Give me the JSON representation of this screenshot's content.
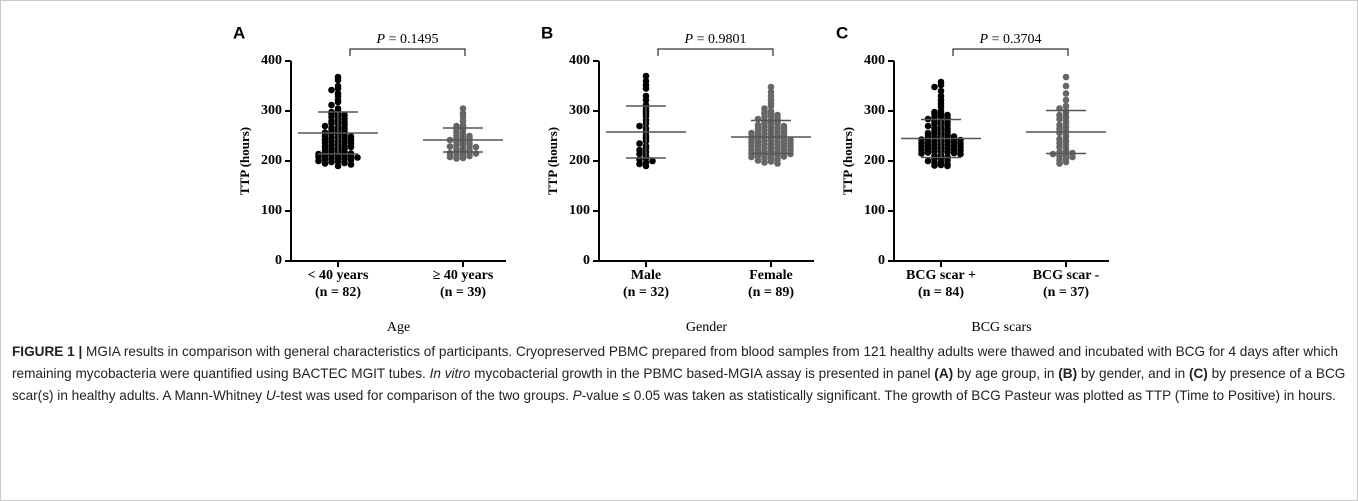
{
  "chart_data": [
    {
      "type": "strip",
      "panel_label": "A",
      "annotation": {
        "italic": "P",
        "text": " = 0.1495"
      },
      "ylabel": "TTP (hours)",
      "xlabel": "Age",
      "categories": [
        "< 40 years",
        "≥ 40 years"
      ],
      "category_counts": [
        "(n = 82)",
        "(n = 39)"
      ],
      "ylim": [
        0,
        400
      ],
      "yticks": [
        0,
        100,
        200,
        300,
        400
      ],
      "series": [
        {
          "color": "#000000",
          "mean": 256,
          "sd": 42,
          "values": [
            368,
            362,
            350,
            345,
            342,
            335,
            330,
            322,
            318,
            312,
            305,
            300,
            298,
            296,
            295,
            292,
            290,
            288,
            285,
            282,
            280,
            278,
            276,
            275,
            272,
            270,
            268,
            266,
            265,
            262,
            260,
            258,
            257,
            255,
            254,
            252,
            250,
            249,
            248,
            246,
            245,
            243,
            242,
            240,
            239,
            238,
            236,
            235,
            233,
            232,
            230,
            229,
            228,
            226,
            225,
            224,
            222,
            220,
            219,
            218,
            216,
            215,
            214,
            213,
            212,
            211,
            210,
            209,
            208,
            207,
            206,
            205,
            204,
            203,
            202,
            200,
            199,
            198,
            196,
            195,
            193,
            190
          ]
        },
        {
          "color": "#666666",
          "mean": 242,
          "sd": 24,
          "values": [
            305,
            295,
            288,
            280,
            272,
            270,
            268,
            265,
            262,
            258,
            255,
            252,
            250,
            248,
            246,
            244,
            242,
            240,
            238,
            236,
            234,
            232,
            230,
            229,
            228,
            226,
            224,
            222,
            220,
            219,
            218,
            216,
            215,
            213,
            212,
            210,
            208,
            206,
            205
          ]
        }
      ]
    },
    {
      "type": "strip",
      "panel_label": "B",
      "annotation": {
        "italic": "P",
        "text": " = 0.9801"
      },
      "ylabel": "TTP (hours)",
      "xlabel": "Gender",
      "categories": [
        "Male",
        "Female"
      ],
      "category_counts": [
        "(n = 32)",
        "(n = 89)"
      ],
      "ylim": [
        0,
        400
      ],
      "yticks": [
        0,
        100,
        200,
        300,
        400
      ],
      "series": [
        {
          "color": "#000000",
          "mean": 258,
          "sd": 52,
          "values": [
            370,
            360,
            352,
            345,
            330,
            322,
            312,
            305,
            300,
            295,
            290,
            282,
            275,
            270,
            265,
            258,
            250,
            245,
            240,
            235,
            230,
            226,
            222,
            218,
            214,
            210,
            206,
            203,
            200,
            197,
            194,
            190
          ]
        },
        {
          "color": "#666666",
          "mean": 248,
          "sd": 33,
          "values": [
            348,
            338,
            330,
            322,
            315,
            310,
            305,
            300,
            298,
            296,
            294,
            292,
            290,
            288,
            286,
            284,
            282,
            280,
            278,
            276,
            275,
            274,
            272,
            270,
            269,
            268,
            266,
            265,
            264,
            262,
            261,
            260,
            258,
            257,
            256,
            255,
            254,
            252,
            251,
            250,
            249,
            248,
            247,
            246,
            245,
            244,
            243,
            242,
            241,
            240,
            239,
            238,
            237,
            236,
            235,
            234,
            233,
            232,
            231,
            230,
            229,
            228,
            227,
            226,
            225,
            224,
            223,
            222,
            221,
            220,
            219,
            218,
            217,
            216,
            215,
            214,
            213,
            212,
            211,
            210,
            209,
            208,
            206,
            205,
            203,
            201,
            199,
            197,
            195
          ]
        }
      ]
    },
    {
      "type": "strip",
      "panel_label": "C",
      "annotation": {
        "italic": "P",
        "text": " = 0.3704"
      },
      "ylabel": "TTP (hours)",
      "xlabel": "BCG scars",
      "categories": [
        "BCG scar +",
        "BCG scar -"
      ],
      "category_counts": [
        "(n = 84)",
        "(n = 37)"
      ],
      "ylim": [
        0,
        400
      ],
      "yticks": [
        0,
        100,
        200,
        300,
        400
      ],
      "series": [
        {
          "color": "#000000",
          "mean": 245,
          "sd": 38,
          "values": [
            358,
            352,
            348,
            340,
            330,
            322,
            315,
            308,
            300,
            298,
            296,
            294,
            292,
            290,
            288,
            286,
            284,
            282,
            280,
            278,
            276,
            274,
            272,
            270,
            268,
            266,
            264,
            262,
            260,
            258,
            256,
            255,
            254,
            252,
            250,
            249,
            248,
            247,
            246,
            245,
            244,
            243,
            242,
            241,
            240,
            239,
            238,
            237,
            236,
            235,
            234,
            233,
            232,
            231,
            230,
            229,
            228,
            227,
            226,
            225,
            224,
            223,
            222,
            221,
            220,
            219,
            218,
            217,
            216,
            215,
            214,
            212,
            210,
            208,
            206,
            204,
            202,
            200,
            198,
            196,
            194,
            192,
            191,
            190
          ]
        },
        {
          "color": "#666666",
          "mean": 258,
          "sd": 43,
          "values": [
            368,
            350,
            335,
            322,
            310,
            305,
            300,
            296,
            292,
            288,
            284,
            280,
            276,
            272,
            268,
            264,
            260,
            256,
            252,
            248,
            244,
            240,
            236,
            232,
            228,
            224,
            220,
            218,
            216,
            214,
            212,
            210,
            208,
            205,
            202,
            198,
            195
          ]
        }
      ]
    }
  ],
  "caption": [
    {
      "style": "bold",
      "text": "FIGURE 1 |"
    },
    {
      "style": "normal",
      "text": " MGIA results in comparison with general characteristics of participants. Cryopreserved PBMC prepared from blood samples from 121 healthy adults were thawed and incubated with BCG for 4 days after which remaining mycobacteria were quantified using BACTEC MGIT tubes. "
    },
    {
      "style": "italic",
      "text": "In vitro"
    },
    {
      "style": "normal",
      "text": " mycobacterial growth in the PBMC based-MGIA assay is presented in panel "
    },
    {
      "style": "bold",
      "text": "(A)"
    },
    {
      "style": "normal",
      "text": " by age group, in "
    },
    {
      "style": "bold",
      "text": "(B)"
    },
    {
      "style": "normal",
      "text": " by gender, and in "
    },
    {
      "style": "bold",
      "text": "(C)"
    },
    {
      "style": "normal",
      "text": " by presence of a BCG scar(s) in healthy adults. A Mann-Whitney "
    },
    {
      "style": "italic",
      "text": "U"
    },
    {
      "style": "normal",
      "text": "-test was used for comparison of the two groups. "
    },
    {
      "style": "italic",
      "text": "P"
    },
    {
      "style": "normal",
      "text": "-value ≤ 0.05 was taken as statistically significant. The growth of BCG Pasteur was plotted as TTP (Time to Positive) in hours."
    }
  ]
}
